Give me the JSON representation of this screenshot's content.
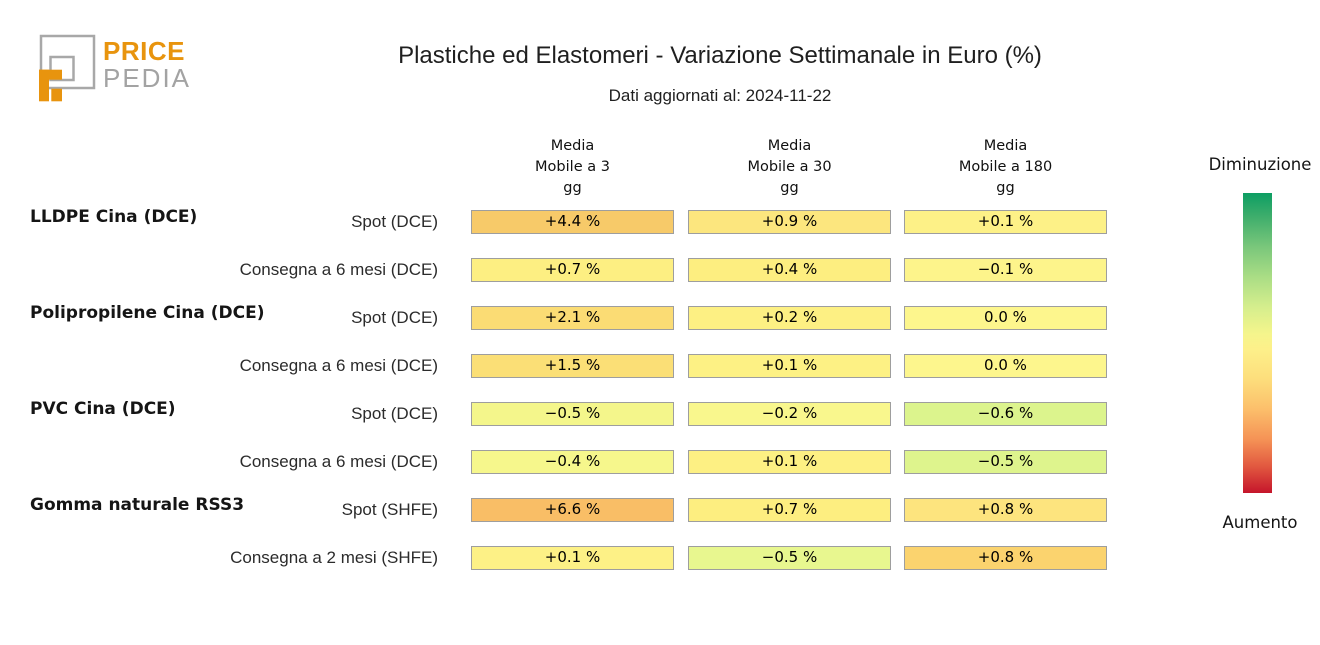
{
  "logo": {
    "part1": "PRICE",
    "part2": "PEDIA",
    "orange": "#e8940e",
    "gray": "#a3a3a3"
  },
  "header": {
    "title": "Plastiche ed Elastomeri - Variazione Settimanale in Euro (%)",
    "subtitle": "Dati aggiornati al: 2024-11-22"
  },
  "table": {
    "column_headers": [
      [
        "Media",
        "Mobile a 3",
        "gg"
      ],
      [
        "Media",
        "Mobile a 30",
        "gg"
      ],
      [
        "Media",
        "Mobile a 180",
        "gg"
      ]
    ],
    "rows": [
      {
        "group": "LLDPE Cina (DCE)",
        "label": "Spot (DCE)",
        "cells": [
          {
            "value": "+4.4 %",
            "bg": "#f7ca69"
          },
          {
            "value": "+0.9 %",
            "bg": "#fce67e"
          },
          {
            "value": "+0.1 %",
            "bg": "#fdf187"
          }
        ]
      },
      {
        "group": "",
        "label": "Consegna a 6 mesi (DCE)",
        "cells": [
          {
            "value": "+0.7 %",
            "bg": "#fdef82"
          },
          {
            "value": "+0.4 %",
            "bg": "#fdee80"
          },
          {
            "value": "−0.1 %",
            "bg": "#fdf48b"
          }
        ]
      },
      {
        "group": "Polipropilene Cina (DCE)",
        "label": "Spot (DCE)",
        "cells": [
          {
            "value": "+2.1 %",
            "bg": "#fbdc74"
          },
          {
            "value": "+0.2 %",
            "bg": "#fdf083"
          },
          {
            "value": "0.0 %",
            "bg": "#fdf68d"
          }
        ]
      },
      {
        "group": "",
        "label": "Consegna a 6 mesi (DCE)",
        "cells": [
          {
            "value": "+1.5 %",
            "bg": "#fbdf76"
          },
          {
            "value": "+0.1 %",
            "bg": "#fdf184"
          },
          {
            "value": "0.0 %",
            "bg": "#fdf68d"
          }
        ]
      },
      {
        "group": "PVC Cina (DCE)",
        "label": "Spot (DCE)",
        "cells": [
          {
            "value": "−0.5 %",
            "bg": "#f4f68b"
          },
          {
            "value": "−0.2 %",
            "bg": "#f9f78d"
          },
          {
            "value": "−0.6 %",
            "bg": "#dcf48d"
          }
        ]
      },
      {
        "group": "",
        "label": "Consegna a 6 mesi (DCE)",
        "cells": [
          {
            "value": "−0.4 %",
            "bg": "#f6f78c"
          },
          {
            "value": "+0.1 %",
            "bg": "#fdf083"
          },
          {
            "value": "−0.5 %",
            "bg": "#def48d"
          }
        ]
      },
      {
        "group": "Gomma naturale RSS3",
        "label": "Spot (SHFE)",
        "cells": [
          {
            "value": "+6.6 %",
            "bg": "#f9be66"
          },
          {
            "value": "+0.7 %",
            "bg": "#fdee80"
          },
          {
            "value": "+0.8 %",
            "bg": "#fde47e"
          }
        ]
      },
      {
        "group": "",
        "label": "Consegna a 2 mesi (SHFE)",
        "cells": [
          {
            "value": "+0.1 %",
            "bg": "#fdf186"
          },
          {
            "value": "−0.5 %",
            "bg": "#e8f78f"
          },
          {
            "value": "+0.8 %",
            "bg": "#fbd36e"
          }
        ]
      }
    ]
  },
  "legend": {
    "top_label": "Diminuzione",
    "bottom_label": "Aumento",
    "gradient_top_color": "#0d9e63",
    "gradient_mid_color": "#fdf08a",
    "gradient_bottom_color": "#c5152b"
  },
  "chart_data": {
    "type": "heatmap",
    "title": "Plastiche ed Elastomeri - Variazione Settimanale in Euro (%)",
    "subtitle": "Dati aggiornati al: 2024-11-22",
    "columns": [
      "Media Mobile a 3 gg",
      "Media Mobile a 30 gg",
      "Media Mobile a 180 gg"
    ],
    "row_groups": [
      "LLDPE Cina (DCE)",
      "LLDPE Cina (DCE)",
      "Polipropilene Cina (DCE)",
      "Polipropilene Cina (DCE)",
      "PVC Cina (DCE)",
      "PVC Cina (DCE)",
      "Gomma naturale RSS3",
      "Gomma naturale RSS3"
    ],
    "row_labels": [
      "Spot (DCE)",
      "Consegna a 6 mesi (DCE)",
      "Spot (DCE)",
      "Consegna a 6 mesi (DCE)",
      "Spot (DCE)",
      "Consegna a 6 mesi (DCE)",
      "Spot (SHFE)",
      "Consegna a 2 mesi (SHFE)"
    ],
    "values_pct": [
      [
        4.4,
        0.9,
        0.1
      ],
      [
        0.7,
        0.4,
        -0.1
      ],
      [
        2.1,
        0.2,
        0.0
      ],
      [
        1.5,
        0.1,
        0.0
      ],
      [
        -0.5,
        -0.2,
        -0.6
      ],
      [
        -0.4,
        0.1,
        -0.5
      ],
      [
        6.6,
        0.7,
        0.8
      ],
      [
        0.1,
        -0.5,
        0.8
      ]
    ],
    "colorbar": {
      "top_label": "Diminuzione",
      "bottom_label": "Aumento",
      "top_color_meaning": "decrease (green)",
      "bottom_color_meaning": "increase (red)",
      "legend_position": "right"
    },
    "grid": false
  }
}
